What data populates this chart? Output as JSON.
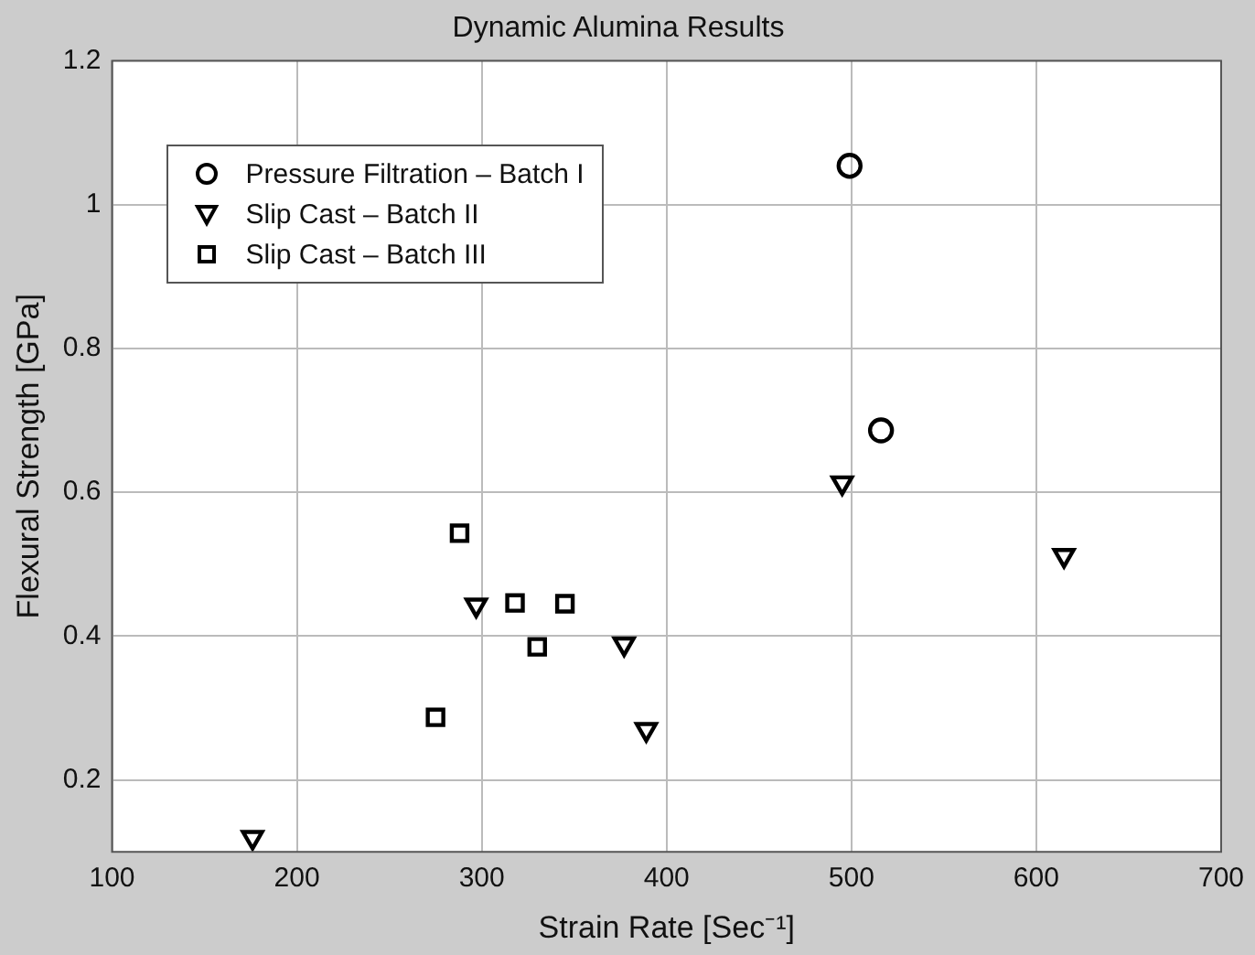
{
  "chart_data": {
    "type": "scatter",
    "title": "Dynamic Alumina Results",
    "xlabel": "Strain Rate [Sec⁻¹]",
    "ylabel": "Flexural Strength [GPa]",
    "xlim": [
      100,
      700
    ],
    "xticks": [
      100,
      200,
      300,
      400,
      500,
      600,
      700
    ],
    "ylim": [
      0.1,
      1.2
    ],
    "yticks": [
      0.2,
      0.4,
      0.6,
      0.8,
      1,
      1.2
    ],
    "grid": true,
    "legend": "top left",
    "series": [
      {
        "name": "Pressure Filtration – Batch I",
        "color": "#000000",
        "marker": "circle",
        "x": [
          499,
          516
        ],
        "values": [
          1.054,
          0.686
        ]
      },
      {
        "name": "Slip Cast – Batch II",
        "color": "#000000",
        "marker": "triangle",
        "x": [
          176,
          297,
          377,
          389,
          495,
          615
        ],
        "values": [
          0.12,
          0.443,
          0.389,
          0.27,
          0.613,
          0.512
        ]
      },
      {
        "name": "Slip Cast – Batch III",
        "color": "#000000",
        "marker": "square",
        "x": [
          275,
          288,
          318,
          330,
          345
        ],
        "values": [
          0.287,
          0.543,
          0.446,
          0.385,
          0.445
        ]
      }
    ]
  }
}
